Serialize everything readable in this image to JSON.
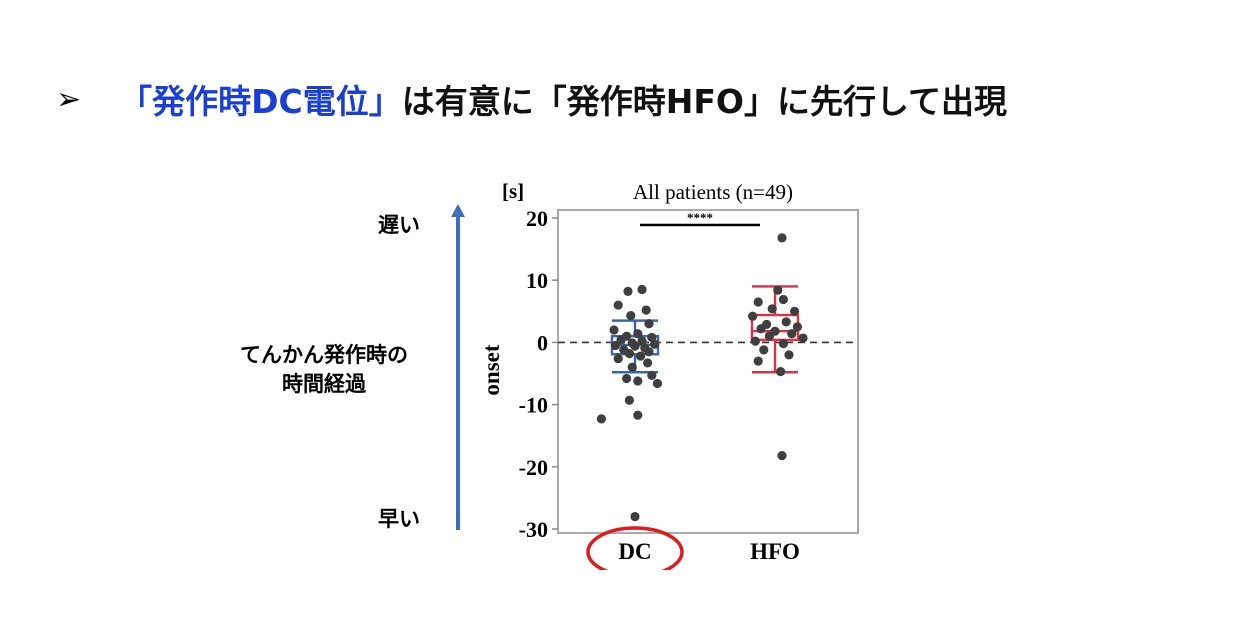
{
  "headline": {
    "bullet": "➢",
    "highlight": "「発作時DC電位」",
    "rest": "は有意に「発作時HFO」に先行して出現",
    "highlight_color": "#1a3fd8"
  },
  "side_axis": {
    "top_label": "遅い",
    "middle_label_line1": "てんかん発作時の",
    "middle_label_line2": "時間経過",
    "bottom_label": "早い",
    "arrow_color": "#3d6fb8"
  },
  "chart_data": {
    "type": "box",
    "title": "All patients (n=49)",
    "unit_label": "[s]",
    "ylabel": "onset",
    "ylim": [
      -30,
      20
    ],
    "yticks": [
      20,
      10,
      0,
      -10,
      -20,
      -30
    ],
    "ytick_labels": [
      "20",
      "10",
      "0",
      "-10",
      "-20",
      "-30"
    ],
    "categories": [
      "DC",
      "HFO"
    ],
    "reference_line": 0,
    "significance": {
      "label": "****",
      "between": [
        "DC",
        "HFO"
      ]
    },
    "highlighted_category": "DC",
    "highlight_color": "#e01b1b",
    "series": [
      {
        "category": "DC",
        "color": "#3a66b0",
        "box": {
          "whisker_low": -4.8,
          "q1": -1.9,
          "median": -0.4,
          "q3": 1.0,
          "whisker_high": 3.5
        },
        "points": [
          [
            -0.05,
            8.2
          ],
          [
            0.05,
            8.5
          ],
          [
            -0.12,
            6.0
          ],
          [
            0.08,
            5.2
          ],
          [
            -0.03,
            4.3
          ],
          [
            0.1,
            3.0
          ],
          [
            -0.15,
            2.0
          ],
          [
            0.02,
            1.4
          ],
          [
            -0.06,
            1.0
          ],
          [
            0.12,
            0.8
          ],
          [
            -0.1,
            0.4
          ],
          [
            0.05,
            0.2
          ],
          [
            -0.02,
            -0.1
          ],
          [
            0.14,
            -0.3
          ],
          [
            -0.14,
            -0.5
          ],
          [
            0.0,
            -0.6
          ],
          [
            0.07,
            -0.9
          ],
          [
            -0.08,
            -1.2
          ],
          [
            0.1,
            -1.5
          ],
          [
            -0.04,
            -1.8
          ],
          [
            0.04,
            -2.2
          ],
          [
            -0.12,
            -2.6
          ],
          [
            0.09,
            -3.3
          ],
          [
            -0.02,
            -4.0
          ],
          [
            0.12,
            -5.3
          ],
          [
            -0.06,
            -5.8
          ],
          [
            0.02,
            -6.2
          ],
          [
            0.16,
            -6.6
          ],
          [
            -0.04,
            -9.3
          ],
          [
            0.02,
            -11.7
          ],
          [
            -0.24,
            -12.3
          ],
          [
            0.0,
            -28.0
          ]
        ]
      },
      {
        "category": "HFO",
        "color": "#d8334a",
        "box": {
          "whisker_low": -4.8,
          "q1": 0.4,
          "median": 1.8,
          "q3": 4.4,
          "whisker_high": 9.0
        },
        "points": [
          [
            0.05,
            16.8
          ],
          [
            0.02,
            8.4
          ],
          [
            -0.12,
            6.5
          ],
          [
            0.06,
            6.9
          ],
          [
            -0.02,
            5.4
          ],
          [
            0.14,
            5.0
          ],
          [
            -0.16,
            4.2
          ],
          [
            0.08,
            3.3
          ],
          [
            -0.06,
            2.9
          ],
          [
            0.16,
            2.5
          ],
          [
            -0.1,
            2.2
          ],
          [
            0.0,
            1.8
          ],
          [
            0.12,
            1.4
          ],
          [
            -0.04,
            1.0
          ],
          [
            0.2,
            0.7
          ],
          [
            -0.14,
            0.2
          ],
          [
            0.06,
            -0.2
          ],
          [
            -0.08,
            -1.2
          ],
          [
            0.1,
            -2.0
          ],
          [
            -0.12,
            -3.0
          ],
          [
            0.04,
            -4.7
          ],
          [
            0.05,
            -18.2
          ]
        ]
      }
    ]
  }
}
